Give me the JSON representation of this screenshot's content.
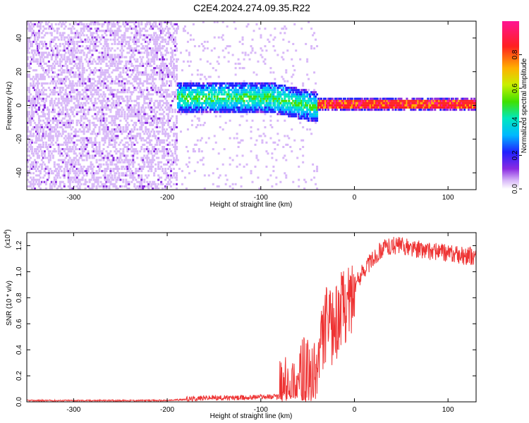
{
  "title": "C2E4.2024.274.09.35.R22",
  "chart_data": [
    {
      "type": "heatmap",
      "xlabel": "Height of straight line (km)",
      "ylabel": "Frequency (Hz)",
      "xlim": [
        -350,
        130
      ],
      "ylim": [
        -50,
        50
      ],
      "xticks": [
        -300,
        -200,
        -100,
        0,
        100
      ],
      "yticks": [
        -40,
        -20,
        0,
        20,
        40
      ],
      "colorbar": {
        "label": "Normalized spectral amplitude",
        "range": [
          0,
          1
        ],
        "ticks": [
          "0.0",
          "0.2",
          "0.4",
          "0.6",
          "0.8"
        ],
        "colors": [
          "#ffffff",
          "#d8b8f8",
          "#8a2be2",
          "#2020ff",
          "#00b8ff",
          "#00e8c0",
          "#40e000",
          "#c8f000",
          "#ffb000",
          "#ff2020",
          "#ff1493"
        ]
      },
      "description_regions": [
        {
          "x": [
            -350,
            -190
          ],
          "freq": [
            -50,
            50
          ],
          "level": "noise 0.1-0.3"
        },
        {
          "x": [
            -190,
            -40
          ],
          "freq": [
            -8,
            12
          ],
          "level": "0.3-0.6"
        },
        {
          "x": [
            -40,
            130
          ],
          "freq": [
            -1,
            1
          ],
          "level": "0.8-1.0"
        }
      ]
    },
    {
      "type": "line",
      "xlabel": "Height of straight line (km)",
      "ylabel": "SNR (10 * v/v)",
      "yscale_label": "(x10",
      "yscale_exp": "4",
      "yscale_close": ")",
      "xlim": [
        -350,
        130
      ],
      "ylim": [
        0,
        1.3
      ],
      "xticks": [
        -300,
        -200,
        -100,
        0,
        100
      ],
      "yticks": [
        "0.0",
        "0.2",
        "0.4",
        "0.6",
        "0.8",
        "1.0",
        "1.2"
      ],
      "series": [
        {
          "color": "#ee3333",
          "x": [
            -350,
            -250,
            -200,
            -180,
            -160,
            -140,
            -120,
            -100,
            -80,
            -70,
            -60,
            -55,
            -50,
            -45,
            -40,
            -35,
            -30,
            -25,
            -20,
            -15,
            -10,
            -5,
            0,
            5,
            10,
            20,
            30,
            40,
            50,
            60,
            70,
            80,
            90,
            100,
            110,
            120,
            130
          ],
          "y": [
            0.01,
            0.01,
            0.01,
            0.02,
            0.03,
            0.03,
            0.03,
            0.04,
            0.04,
            0.08,
            0.12,
            0.2,
            0.18,
            0.12,
            0.25,
            0.45,
            0.6,
            0.55,
            0.6,
            0.7,
            0.75,
            0.78,
            0.88,
            0.95,
            1.02,
            1.1,
            1.18,
            1.2,
            1.2,
            1.18,
            1.17,
            1.16,
            1.15,
            1.14,
            1.13,
            1.12,
            1.12
          ]
        }
      ]
    }
  ]
}
